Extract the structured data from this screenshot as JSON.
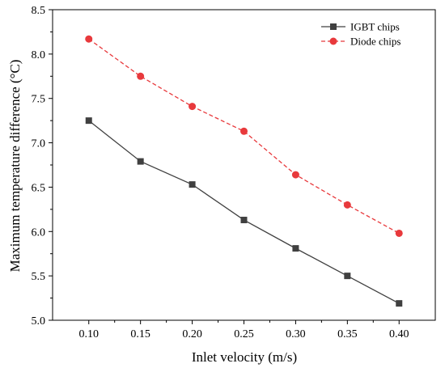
{
  "chart_data": {
    "type": "line",
    "xlabel": "Inlet velocity (m/s)",
    "ylabel": "Maximum temperature difference (°C)",
    "x": [
      0.1,
      0.15,
      0.2,
      0.25,
      0.3,
      0.35,
      0.4
    ],
    "x_tick_labels": [
      "0.10",
      "0.15",
      "0.20",
      "0.25",
      "0.30",
      "0.35",
      "0.40"
    ],
    "xlim": [
      0.065,
      0.435
    ],
    "ylim": [
      5.0,
      8.5
    ],
    "y_ticks": [
      5.0,
      5.5,
      6.0,
      6.5,
      7.0,
      7.5,
      8.0,
      8.5
    ],
    "y_tick_labels": [
      "5.0",
      "5.5",
      "6.0",
      "6.5",
      "7.0",
      "7.5",
      "8.0",
      "8.5"
    ],
    "grid": false,
    "legend_position": "top-right",
    "series": [
      {
        "name": "IGBT chips",
        "values": [
          7.25,
          6.79,
          6.53,
          6.13,
          5.81,
          5.5,
          5.19
        ],
        "color": "#404040",
        "marker": "square",
        "line_style": "solid"
      },
      {
        "name": "Diode chips",
        "values": [
          8.17,
          7.75,
          7.41,
          7.13,
          6.64,
          6.3,
          5.98
        ],
        "color": "#e8393c",
        "marker": "circle",
        "line_style": "dashed"
      }
    ]
  }
}
